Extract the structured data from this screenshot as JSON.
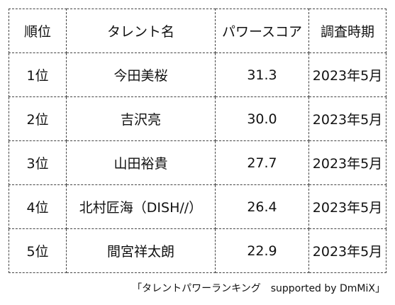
{
  "table": {
    "headers": {
      "rank": "順位",
      "name": "タレント名",
      "score": "パワースコア",
      "date": "調査時期"
    },
    "rows": [
      {
        "rank": "1位",
        "name": "今田美桜",
        "score": "31.3",
        "date": "2023年5月"
      },
      {
        "rank": "2位",
        "name": "吉沢亮",
        "score": "30.0",
        "date": "2023年5月"
      },
      {
        "rank": "3位",
        "name": "山田裕貴",
        "score": "27.7",
        "date": "2023年5月"
      },
      {
        "rank": "4位",
        "name": "北村匠海（DISH//）",
        "score": "26.4",
        "date": "2023年5月"
      },
      {
        "rank": "5位",
        "name": "間宮祥太朗",
        "score": "22.9",
        "date": "2023年5月"
      }
    ]
  },
  "source": "「タレントパワーランキング　supported by DmMiX」"
}
